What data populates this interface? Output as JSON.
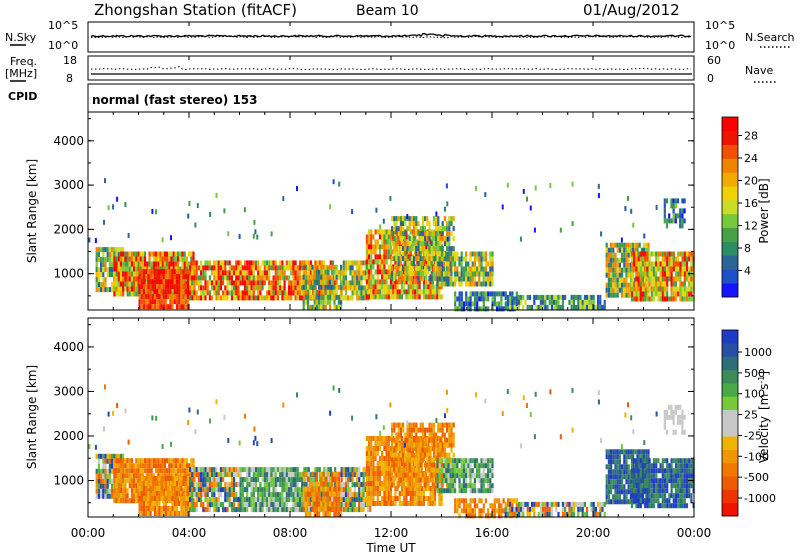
{
  "header": {
    "station": "Zhongshan Station (fitACF)",
    "beam": "Beam 10",
    "date": "01/Aug/2012"
  },
  "top_panels": {
    "nsky_label": "N.Sky",
    "nsky_ticks": [
      "10^5",
      "10^0"
    ],
    "nsearch_label": "N.Search",
    "nsearch_ticks": [
      "10^5",
      "10^0"
    ],
    "freq_label_1": "Freq.",
    "freq_label_2": "[MHz]",
    "freq_ticks": [
      "18",
      "8"
    ],
    "nave_label": "Nave",
    "nave_ticks": [
      "60",
      "0"
    ],
    "cpid_label": "CPID",
    "cpid_text": "normal (fast stereo) 153"
  },
  "chart_data": [
    {
      "type": "heatmap",
      "name": "power",
      "xlabel": "Time UT",
      "ylabel": "Slant Range [km]",
      "x_ticks": [
        "00:00",
        "04:00",
        "08:00",
        "12:00",
        "16:00",
        "20:00",
        "00:00"
      ],
      "xlim_hours": [
        0,
        24
      ],
      "y_ticks": [
        1000,
        2000,
        3000,
        4000
      ],
      "ylim": [
        180,
        4650
      ],
      "colorbar": {
        "label": "Power [dB]",
        "ticks": [
          "4",
          "8",
          "12",
          "16",
          "20",
          "24",
          "28"
        ],
        "colors": [
          "#1414ff",
          "#1e50c8",
          "#2d6496",
          "#2d8c64",
          "#46a046",
          "#78c83c",
          "#c8dc28",
          "#f0d200",
          "#f0aa00",
          "#f08200",
          "#f05000",
          "#f01400",
          "#ff0000"
        ]
      }
    },
    {
      "type": "heatmap",
      "name": "velocity",
      "xlabel": "Time UT",
      "ylabel": "Slant Range [km]",
      "x_ticks": [
        "00:00",
        "04:00",
        "08:00",
        "12:00",
        "16:00",
        "20:00",
        "00:00"
      ],
      "xlim_hours": [
        0,
        24
      ],
      "y_ticks": [
        1000,
        2000,
        3000,
        4000
      ],
      "ylim": [
        180,
        4650
      ],
      "colorbar": {
        "label": "Velocity",
        "unit": "[m s",
        "unit_exp": "-1",
        "unit_close": "]",
        "ticks": [
          "1000",
          "500",
          "100",
          "25",
          "-25",
          "-100",
          "-500",
          "-1000"
        ],
        "colors": [
          "#1e3cc8",
          "#2850a0",
          "#2d6e78",
          "#3c8c5a",
          "#46aa46",
          "#78c83c",
          "#c8c8c8",
          "#c8c8c8",
          "#f0b400",
          "#f09600",
          "#f07800",
          "#f05a00",
          "#f03200",
          "#f01400"
        ]
      }
    }
  ]
}
